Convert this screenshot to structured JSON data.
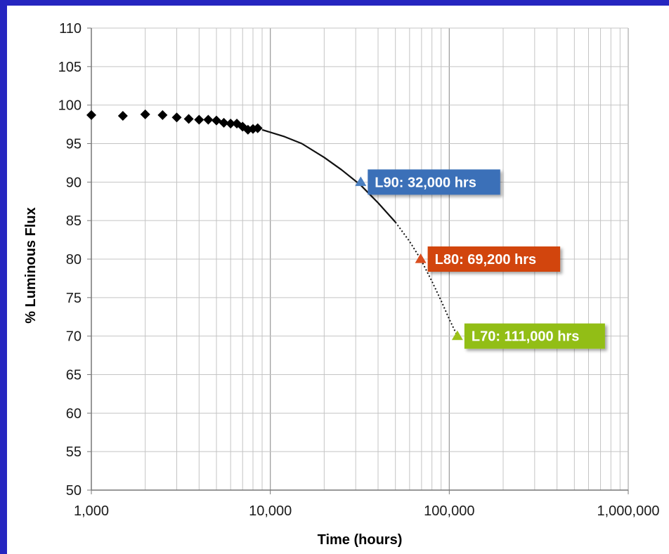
{
  "chart_data": {
    "type": "scatter",
    "xlabel": "Time (hours)",
    "ylabel": "% Luminous Flux",
    "x_scale": "log",
    "xlim": [
      1000,
      1000000
    ],
    "ylim": [
      50,
      110
    ],
    "x_ticks": [
      "1,000",
      "10,000",
      "100,000",
      "1,000,000"
    ],
    "y_ticks": [
      "50",
      "55",
      "60",
      "65",
      "70",
      "75",
      "80",
      "85",
      "90",
      "95",
      "100",
      "105",
      "110"
    ],
    "grid": true,
    "measured": {
      "x": [
        1000,
        1500,
        2000,
        2500,
        3000,
        3500,
        4000,
        4500,
        5000,
        5500,
        6000,
        6500,
        7000,
        7500,
        8000,
        8500
      ],
      "y": [
        98.7,
        98.6,
        98.8,
        98.7,
        98.4,
        98.2,
        98.1,
        98.1,
        98.0,
        97.7,
        97.6,
        97.6,
        97.2,
        96.8,
        96.9,
        97.0
      ]
    },
    "fit_solid": {
      "x": [
        9000,
        12000,
        15000,
        20000,
        25000,
        32000,
        40000,
        50000
      ],
      "y": [
        96.8,
        95.9,
        95.0,
        93.2,
        91.6,
        89.6,
        87.3,
        84.8
      ]
    },
    "fit_dotted": {
      "x": [
        50000,
        60000,
        69200,
        80000,
        90000,
        100000,
        111000
      ],
      "y": [
        84.8,
        82.3,
        80.0,
        77.1,
        74.6,
        72.2,
        70.0
      ]
    },
    "markers": [
      {
        "label": "L90: 32,000 hrs",
        "x": 32000,
        "y": 90,
        "color": "#4a7fc1",
        "box_color": "#3a6fb8"
      },
      {
        "label": "L80: 69,200 hrs",
        "x": 69200,
        "y": 80,
        "color": "#d94e1f",
        "box_color": "#d2440f"
      },
      {
        "label": "L70: 111,000 hrs",
        "x": 111000,
        "y": 70,
        "color": "#9cc21a",
        "box_color": "#92be12"
      }
    ]
  }
}
